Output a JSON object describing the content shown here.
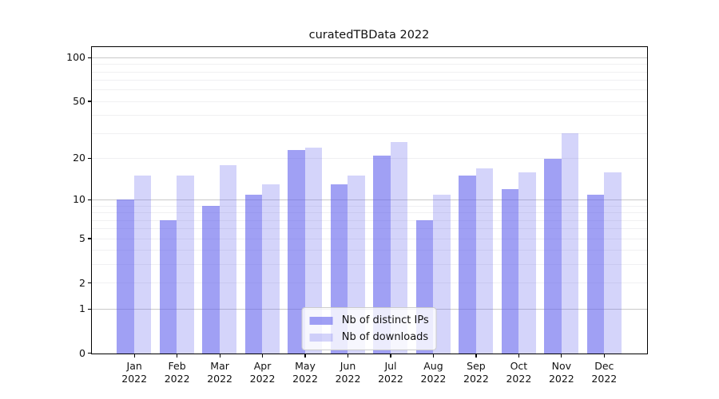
{
  "title": "curatedTBData 2022",
  "colors": {
    "bar_distinct_ips": "rgba(102,102,238,0.62)",
    "bar_downloads": "rgba(102,102,238,0.28)",
    "grid_major": "#c9c9c9",
    "grid_minor": "#f0f0f2",
    "axis": "#000000",
    "text": "#111111"
  },
  "chart_data": {
    "type": "bar",
    "title": "curatedTBData 2022",
    "categories": [
      "Jan 2022",
      "Feb 2022",
      "Mar 2022",
      "Apr 2022",
      "May 2022",
      "Jun 2022",
      "Jul 2022",
      "Aug 2022",
      "Sep 2022",
      "Oct 2022",
      "Nov 2022",
      "Dec 2022"
    ],
    "series": [
      {
        "name": "Nb of distinct IPs",
        "color_key": "bar_distinct_ips",
        "values": [
          10,
          7,
          9,
          11,
          23,
          13,
          21,
          7,
          15,
          12,
          20,
          11
        ]
      },
      {
        "name": "Nb of downloads",
        "color_key": "bar_downloads",
        "values": [
          15,
          15,
          18,
          13,
          24,
          15,
          26,
          11,
          17,
          16,
          30,
          16
        ]
      }
    ],
    "xlabel": "",
    "ylabel": "",
    "y_scale": "log1p",
    "ylim": [
      0,
      118.5
    ],
    "y_ticks": [
      0,
      1,
      2,
      5,
      10,
      20,
      50,
      100
    ],
    "y_grid_major": [
      1,
      10,
      100
    ],
    "y_grid_minor": [
      2,
      3,
      4,
      5,
      6,
      7,
      8,
      9,
      20,
      30,
      40,
      50,
      60,
      70,
      80,
      90
    ],
    "grid": true,
    "legend_position": "lower center"
  }
}
